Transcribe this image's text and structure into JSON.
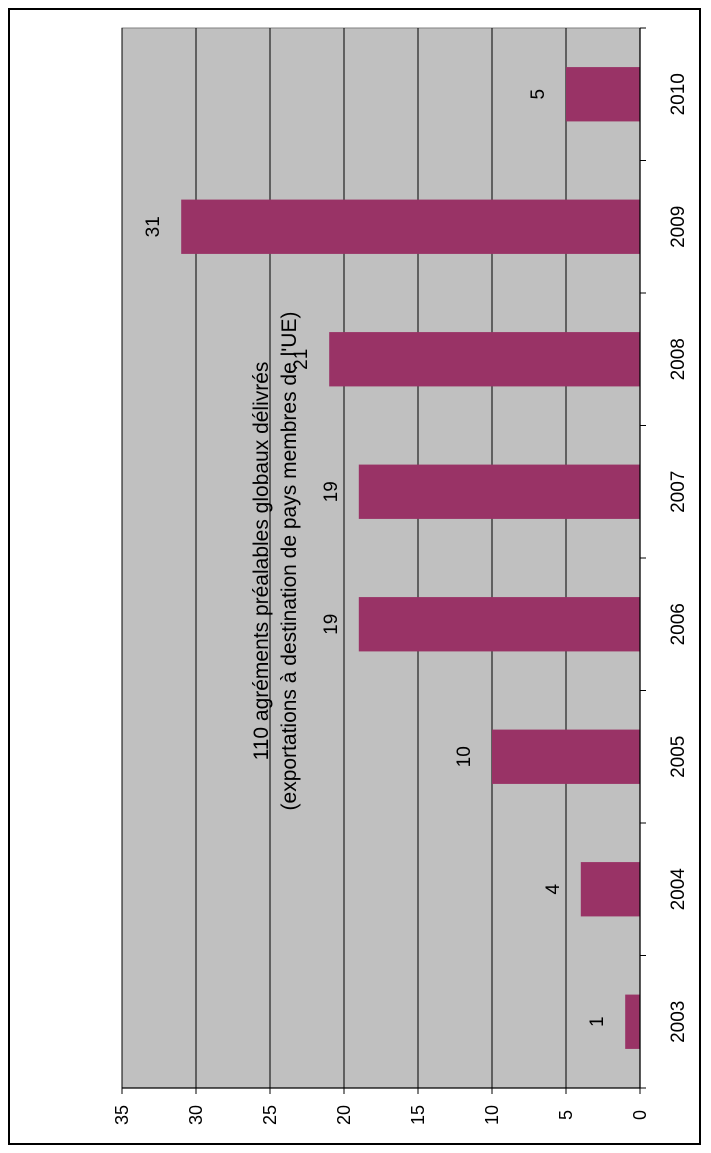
{
  "chart_data": {
    "type": "bar",
    "orientation": "rotated-90-clockwise",
    "title": "110 agréments préalables globaux délivrés",
    "subtitle": "(exportations à destination de pays membres de l'UE)",
    "categories": [
      "2003",
      "2004",
      "2005",
      "2006",
      "2007",
      "2008",
      "2009",
      "2010"
    ],
    "values": [
      1,
      4,
      10,
      19,
      19,
      21,
      31,
      5
    ],
    "data_labels": [
      "1",
      "4",
      "10",
      "19",
      "19",
      "21",
      "31",
      "5"
    ],
    "value_ticks": [
      "0",
      "5",
      "10",
      "15",
      "20",
      "25",
      "30",
      "35"
    ],
    "ylim": [
      0,
      35
    ],
    "grid": true,
    "legend": "none",
    "xlabel": "",
    "ylabel": "",
    "colors": {
      "bar": "#993366",
      "plot_background": "#c0c0c0",
      "gridline": "#000000"
    }
  }
}
